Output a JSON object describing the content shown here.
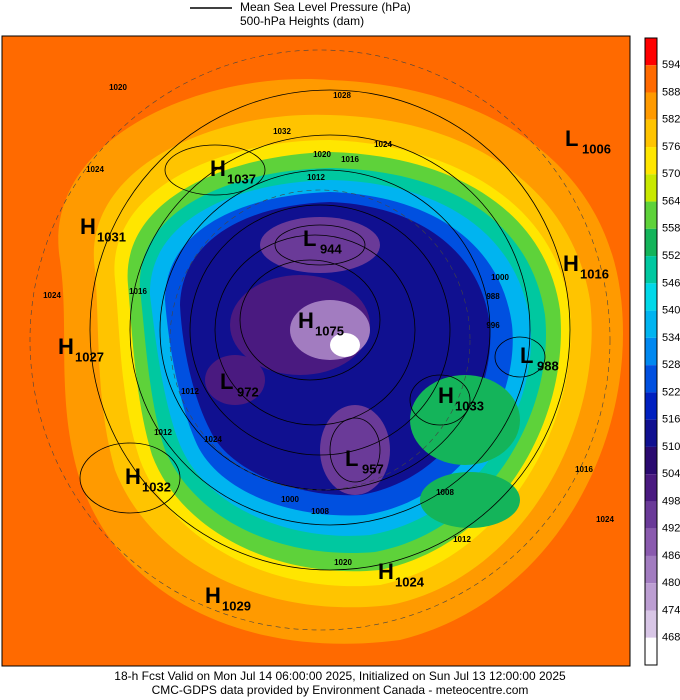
{
  "legend": {
    "lines": [
      "Mean Sea Level Pressure (hPa)",
      "500-hPa Heights (dam)"
    ]
  },
  "colorbar": {
    "colors": [
      "#ff0000",
      "#ff6a00",
      "#ff9a00",
      "#ffc400",
      "#ffe600",
      "#c8e800",
      "#5ed23a",
      "#14b45a",
      "#00c8a0",
      "#00d8e8",
      "#00b4f0",
      "#0088f0",
      "#0050e0",
      "#0020c0",
      "#101090",
      "#2a0a70",
      "#4a1a80",
      "#6a3a98",
      "#8a5aae",
      "#a27cc0",
      "#bc9ed2",
      "#d8c6e6",
      "#ffffff"
    ],
    "labels": [
      "594",
      "588",
      "582",
      "576",
      "570",
      "564",
      "558",
      "552",
      "546",
      "540",
      "534",
      "528",
      "522",
      "516",
      "510",
      "504",
      "498",
      "492",
      "486",
      "480",
      "474",
      "468"
    ]
  },
  "centers": [
    {
      "letter": "L",
      "value": "1006"
    },
    {
      "letter": "H",
      "value": "1037"
    },
    {
      "letter": "H",
      "value": "1031"
    },
    {
      "letter": "L",
      "value": "944"
    },
    {
      "letter": "H",
      "value": "1016"
    },
    {
      "letter": "H",
      "value": "1027"
    },
    {
      "letter": "H",
      "value": "1075"
    },
    {
      "letter": "L",
      "value": "988"
    },
    {
      "letter": "L",
      "value": "972"
    },
    {
      "letter": "H",
      "value": "1033"
    },
    {
      "letter": "L",
      "value": "957"
    },
    {
      "letter": "H",
      "value": "1032"
    },
    {
      "letter": "H",
      "value": "1024"
    },
    {
      "letter": "H",
      "value": "1029"
    }
  ],
  "contour_labels": [
    "1020",
    "1028",
    "1032",
    "1024",
    "1020",
    "1016",
    "1012",
    "1024",
    "1024",
    "1016",
    "1000",
    "988",
    "996",
    "1012",
    "1012",
    "1024",
    "1008",
    "1012",
    "1020",
    "1016",
    "1008",
    "1000",
    "1024"
  ],
  "footer": [
    "18-h Fcst Valid on Mon Jul 14 06:00:00 2025, Initialized on Sun Jul 13 12:00:00 2025",
    "CMC-GDPS data provided by Environment Canada - meteocentre.com"
  ]
}
